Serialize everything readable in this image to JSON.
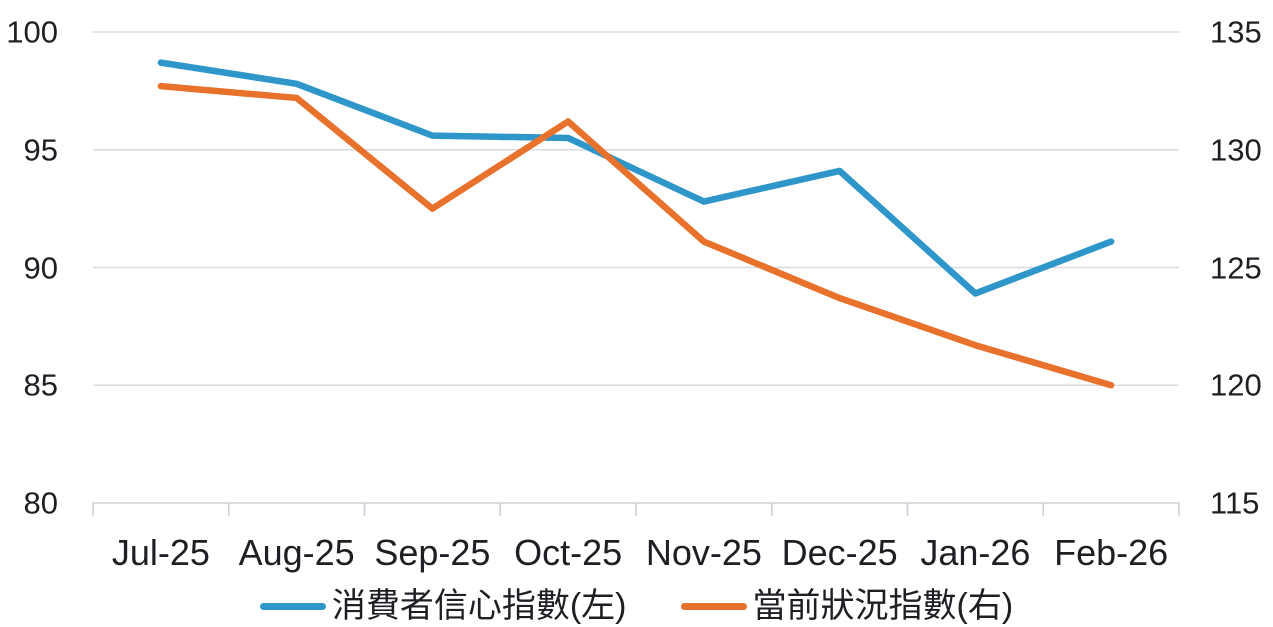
{
  "page": {
    "background": "#ffffff"
  },
  "chart_data": {
    "type": "line",
    "title": "",
    "categories": [
      "Jul-25",
      "Aug-25",
      "Sep-25",
      "Oct-25",
      "Nov-25",
      "Dec-25",
      "Jan-26",
      "Feb-26"
    ],
    "series": [
      {
        "name": "消費者信心指數(左)",
        "axis": "left",
        "color": "#2e96c9",
        "values": [
          98.7,
          97.8,
          95.6,
          95.5,
          92.8,
          94.1,
          88.9,
          91.1
        ]
      },
      {
        "name": "當前狀況指數(右)",
        "axis": "right",
        "color": "#e8712c",
        "values": [
          132.7,
          132.2,
          127.5,
          131.2,
          126.1,
          123.7,
          121.7,
          120.0
        ]
      }
    ],
    "left_axis": {
      "min": 80,
      "max": 100,
      "ticks": [
        100,
        95,
        90,
        85,
        80
      ]
    },
    "right_axis": {
      "min": 115,
      "max": 135,
      "ticks": [
        135,
        130,
        125,
        120,
        115
      ]
    },
    "grid": true,
    "legend_position": "bottom"
  },
  "colors": {
    "gridline": "#d9d9e1",
    "axis_line": "#cfcfd9",
    "tick_text": "#1e1e24",
    "legend_text": "#1e1e24",
    "background": "#ffffff"
  }
}
